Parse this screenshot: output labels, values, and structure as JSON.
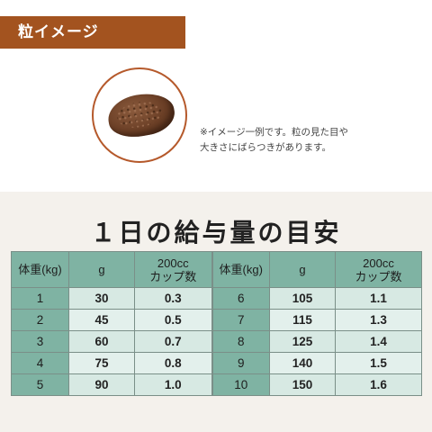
{
  "banner": {
    "label": "粒イメージ",
    "color": "#a3531f"
  },
  "kibble": {
    "icon": "kibble-image"
  },
  "note": {
    "line1": "※イメージ一例です。粒の見た目や",
    "line2": "大きさにばらつきがあります。"
  },
  "feed": {
    "title": "１日の給与量の目安",
    "headers": {
      "weight": "体重(kg)",
      "grams": "g",
      "cup_line1": "200cc",
      "cup_line2": "カップ数"
    },
    "left_rows": [
      {
        "weight": "1",
        "grams": "30",
        "cups": "0.3"
      },
      {
        "weight": "2",
        "grams": "45",
        "cups": "0.5"
      },
      {
        "weight": "3",
        "grams": "60",
        "cups": "0.7"
      },
      {
        "weight": "4",
        "grams": "75",
        "cups": "0.8"
      },
      {
        "weight": "5",
        "grams": "90",
        "cups": "1.0"
      }
    ],
    "right_rows": [
      {
        "weight": "6",
        "grams": "105",
        "cups": "1.1"
      },
      {
        "weight": "7",
        "grams": "115",
        "cups": "1.3"
      },
      {
        "weight": "8",
        "grams": "125",
        "cups": "1.4"
      },
      {
        "weight": "9",
        "grams": "140",
        "cups": "1.5"
      },
      {
        "weight": "10",
        "grams": "150",
        "cups": "1.6"
      }
    ]
  },
  "colors": {
    "header_green": "#7fb3a3",
    "cell_light": "#d7e9e3",
    "background": "#f4f1ec"
  }
}
